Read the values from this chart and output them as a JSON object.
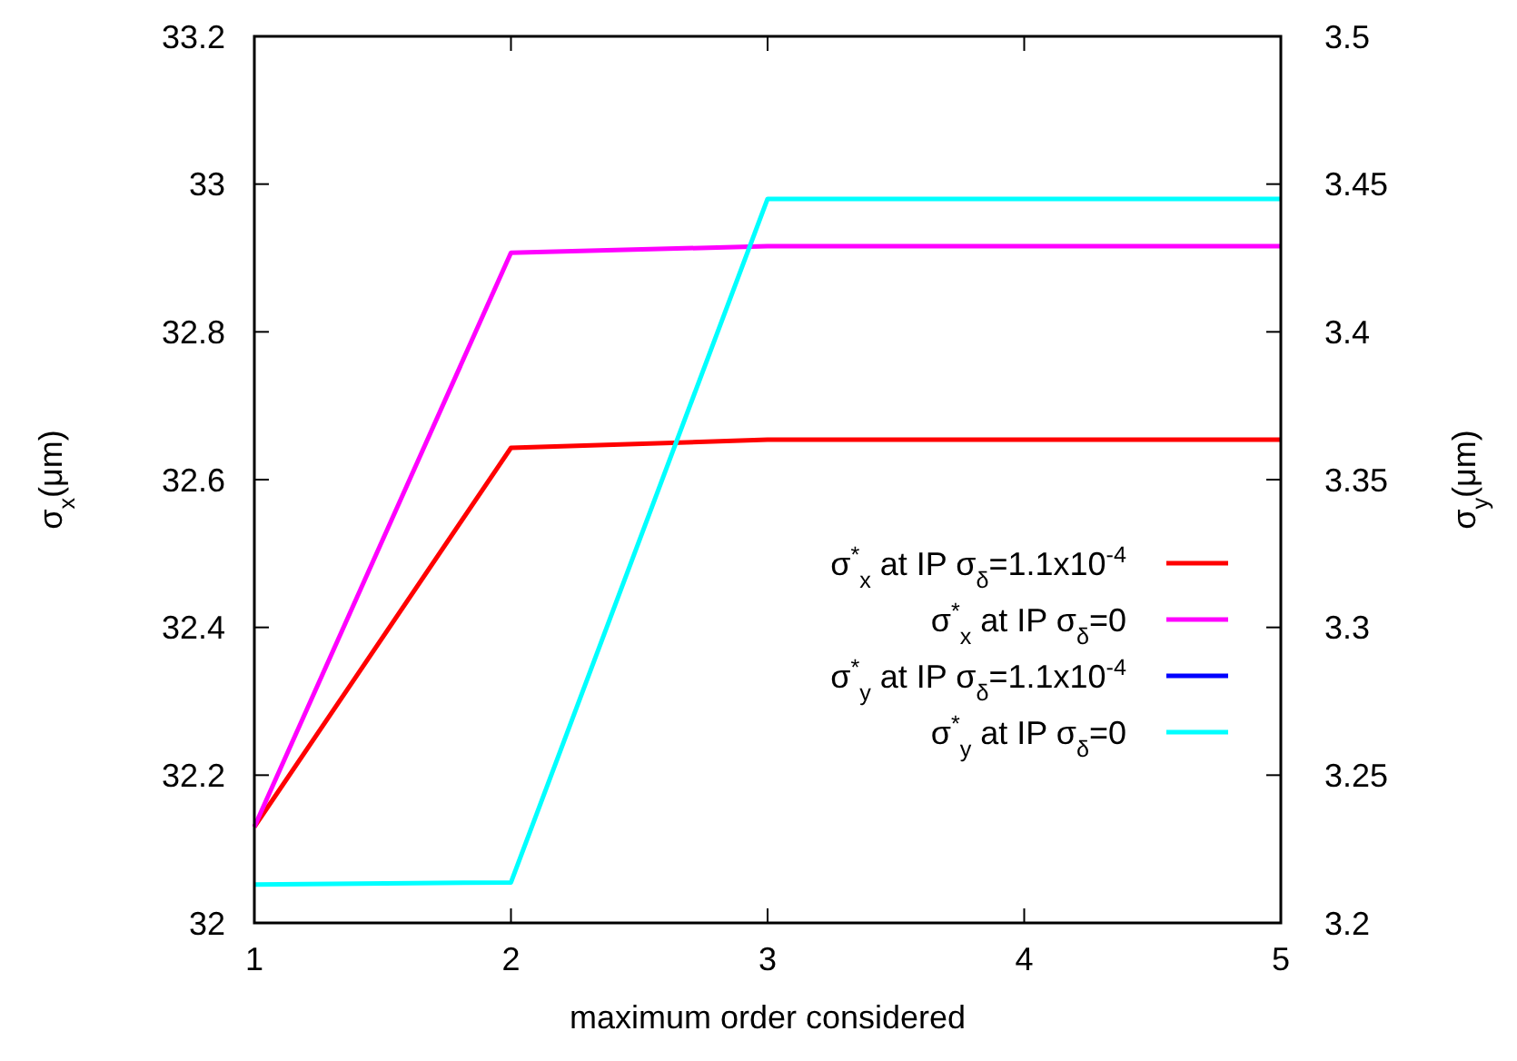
{
  "chart_data": {
    "type": "line",
    "xlabel": "maximum order considered",
    "ylabel": "σ$_{x}$(μm)",
    "y2label": "σ$_{y}$(μm)",
    "x": [
      1,
      2,
      3,
      4,
      5
    ],
    "xlim": [
      1,
      5
    ],
    "xticks": [
      1,
      2,
      3,
      4,
      5
    ],
    "ylim": [
      32,
      33.2
    ],
    "yticks": [
      32,
      32.2,
      32.4,
      32.6,
      32.8,
      33,
      33.2
    ],
    "y2lim": [
      3.2,
      3.5
    ],
    "y2ticks": [
      3.2,
      3.25,
      3.3,
      3.35,
      3.4,
      3.45,
      3.5
    ],
    "grid": false,
    "legend": "right",
    "line_style": "solid",
    "series": [
      {
        "name": "σ$^{*}$$_{x}$ at IP σ$_{δ}$=1.1x10$^{-4}$",
        "color": "#ff0000",
        "values": [
          32.13,
          32.643,
          32.654,
          32.654,
          32.654
        ]
      },
      {
        "name": "σ$^{*}$$_{x}$ at IP σ$_{δ}$=0",
        "color": "#ff00ff",
        "values": [
          32.13,
          32.907,
          32.916,
          32.916,
          32.916
        ]
      },
      {
        "name": "σ$^{*}$$_{y}$ at IP σ$_{δ}$=1.1x10$^{-4}$",
        "color": "#0000ff",
        "axis": "y2",
        "values": [
          null,
          null,
          null,
          null,
          null
        ]
      },
      {
        "name": "σ$^{*}$$_{y}$ at IP σ$_{δ}$=0",
        "color": "#00ffff",
        "axis": "y2",
        "values": [
          3.213,
          3.2137,
          3.445,
          3.445,
          3.445
        ]
      }
    ]
  }
}
